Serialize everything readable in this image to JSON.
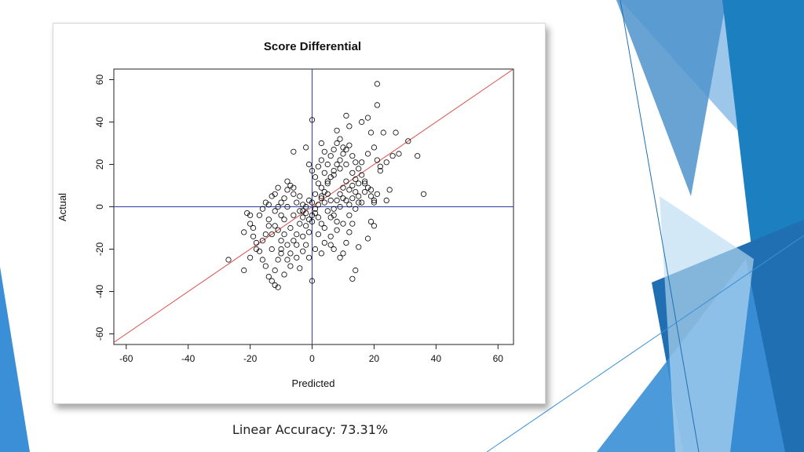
{
  "slide": {
    "caption": "Linear Accuracy: 73.31%",
    "colors": {
      "accent_dark": "#1f6fb2",
      "accent_mid": "#3a8fd6",
      "accent_light": "#9cc6ea",
      "accent_teal": "#1b9ad6"
    }
  },
  "chart_data": {
    "type": "scatter",
    "title": "Score Differential",
    "xlabel": "Predicted",
    "ylabel": "Actual",
    "xlim": [
      -64,
      65
    ],
    "ylim": [
      -65,
      65
    ],
    "xticks": [
      -60,
      -40,
      -20,
      0,
      20,
      40,
      60
    ],
    "yticks": [
      -60,
      -40,
      -20,
      0,
      20,
      40,
      60
    ],
    "grid": false,
    "reference_lines": [
      {
        "kind": "diagonal",
        "slope": 1,
        "intercept": 0,
        "color": "#d9534f"
      },
      {
        "kind": "vertical",
        "x": 0,
        "color": "#2b3ea8"
      },
      {
        "kind": "horizontal",
        "y": 0,
        "color": "#2b3ea8"
      }
    ],
    "marker_color": "#000000",
    "points": [
      [
        21,
        58
      ],
      [
        21,
        48
      ],
      [
        0,
        41
      ],
      [
        11,
        43
      ],
      [
        18,
        42
      ],
      [
        16,
        40
      ],
      [
        12,
        38
      ],
      [
        8,
        36
      ],
      [
        19,
        35
      ],
      [
        23,
        35
      ],
      [
        27,
        35
      ],
      [
        31,
        31
      ],
      [
        34,
        24
      ],
      [
        36,
        6
      ],
      [
        24,
        21
      ],
      [
        26,
        24
      ],
      [
        28,
        25
      ],
      [
        22,
        17
      ],
      [
        17,
        11
      ],
      [
        19,
        8
      ],
      [
        21,
        6
      ],
      [
        25,
        8
      ],
      [
        24,
        3
      ],
      [
        20,
        3
      ],
      [
        15,
        2
      ],
      [
        -27,
        -25
      ],
      [
        -22,
        -30
      ],
      [
        -20,
        -24
      ],
      [
        -17,
        -21
      ],
      [
        -16,
        -25
      ],
      [
        -15,
        -28
      ],
      [
        -14,
        -33
      ],
      [
        -13,
        -35
      ],
      [
        -12,
        -37
      ],
      [
        -11,
        -38
      ],
      [
        -12,
        -30
      ],
      [
        -11,
        -25
      ],
      [
        -10,
        -22
      ],
      [
        -8,
        -18
      ],
      [
        -6,
        -16
      ],
      [
        -3,
        -14
      ],
      [
        -4,
        -29
      ],
      [
        -7,
        -28
      ],
      [
        -9,
        -32
      ],
      [
        -5,
        -24
      ],
      [
        0,
        -35
      ],
      [
        13,
        -34
      ],
      [
        14,
        -30
      ],
      [
        10,
        -22
      ],
      [
        11,
        -17
      ],
      [
        12,
        -12
      ],
      [
        13,
        -8
      ],
      [
        18,
        -15
      ],
      [
        19,
        -7
      ],
      [
        -21,
        -3
      ],
      [
        -20,
        -8
      ],
      [
        -19,
        -14
      ],
      [
        -18,
        -17
      ],
      [
        -14,
        -6
      ],
      [
        -13,
        -13
      ],
      [
        -12,
        -9
      ],
      [
        -10,
        -4
      ],
      [
        -9,
        4
      ],
      [
        -8,
        8
      ],
      [
        -7,
        10
      ],
      [
        -6,
        6
      ],
      [
        -5,
        2
      ],
      [
        -4,
        -2
      ],
      [
        -3,
        -5
      ],
      [
        -2,
        -9
      ],
      [
        -1,
        -12
      ],
      [
        0,
        -7
      ],
      [
        1,
        -3
      ],
      [
        2,
        1
      ],
      [
        3,
        4
      ],
      [
        4,
        7
      ],
      [
        5,
        11
      ],
      [
        6,
        14
      ],
      [
        7,
        17
      ],
      [
        8,
        20
      ],
      [
        9,
        22
      ],
      [
        10,
        25
      ],
      [
        11,
        27
      ],
      [
        12,
        29
      ],
      [
        13,
        24
      ],
      [
        14,
        21
      ],
      [
        15,
        18
      ],
      [
        16,
        15
      ],
      [
        17,
        12
      ],
      [
        18,
        9
      ],
      [
        19,
        5
      ],
      [
        20,
        2
      ],
      [
        -15,
        2
      ],
      [
        -13,
        5
      ],
      [
        -11,
        0
      ],
      [
        -9,
        -6
      ],
      [
        -7,
        -10
      ],
      [
        -5,
        -13
      ],
      [
        -3,
        -2
      ],
      [
        -1,
        3
      ],
      [
        1,
        6
      ],
      [
        3,
        9
      ],
      [
        5,
        12
      ],
      [
        7,
        15
      ],
      [
        9,
        18
      ],
      [
        11,
        20
      ],
      [
        13,
        16
      ],
      [
        15,
        11
      ],
      [
        17,
        7
      ],
      [
        16,
        2
      ],
      [
        14,
        -1
      ],
      [
        12,
        -4
      ],
      [
        10,
        -8
      ],
      [
        8,
        -11
      ],
      [
        6,
        -14
      ],
      [
        4,
        -17
      ],
      [
        2,
        -13
      ],
      [
        0,
        -4
      ],
      [
        -2,
        0
      ],
      [
        -4,
        5
      ],
      [
        -6,
        9
      ],
      [
        -8,
        12
      ],
      [
        -10,
        2
      ],
      [
        -12,
        -2
      ],
      [
        -14,
        -9
      ],
      [
        -16,
        -16
      ],
      [
        -18,
        -20
      ],
      [
        5,
        20
      ],
      [
        6,
        24
      ],
      [
        7,
        27
      ],
      [
        8,
        30
      ],
      [
        9,
        32
      ],
      [
        10,
        28
      ],
      [
        4,
        26
      ],
      [
        3,
        30
      ],
      [
        -2,
        28
      ],
      [
        -6,
        26
      ],
      [
        -1,
        20
      ],
      [
        0,
        17
      ],
      [
        1,
        14
      ],
      [
        2,
        11
      ],
      [
        3,
        5
      ],
      [
        4,
        2
      ],
      [
        5,
        -2
      ],
      [
        6,
        -5
      ],
      [
        7,
        -1
      ],
      [
        8,
        3
      ],
      [
        9,
        6
      ],
      [
        10,
        9
      ],
      [
        11,
        12
      ],
      [
        12,
        8
      ],
      [
        13,
        4
      ],
      [
        14,
        7
      ],
      [
        15,
        5
      ],
      [
        -2,
        -18
      ],
      [
        -3,
        -21
      ],
      [
        -5,
        -18
      ],
      [
        -7,
        -22
      ],
      [
        -8,
        -25
      ],
      [
        -10,
        -20
      ],
      [
        -1,
        -24
      ],
      [
        1,
        -20
      ],
      [
        3,
        -22
      ],
      [
        9,
        -24
      ],
      [
        15,
        -19
      ],
      [
        20,
        -9
      ],
      [
        -19,
        -10
      ],
      [
        -17,
        -4
      ],
      [
        -16,
        -1
      ],
      [
        -14,
        1
      ],
      [
        -12,
        6
      ],
      [
        -11,
        9
      ],
      [
        0,
        2
      ],
      [
        1,
        -1
      ],
      [
        2,
        -5
      ],
      [
        3,
        -8
      ],
      [
        4,
        -10
      ],
      [
        -1,
        -6
      ],
      [
        -2,
        -3
      ],
      [
        -3,
        1
      ],
      [
        2,
        19
      ],
      [
        3,
        22
      ],
      [
        4,
        16
      ],
      [
        5,
        6
      ],
      [
        6,
        3
      ],
      [
        7,
        -4
      ],
      [
        8,
        -7
      ],
      [
        9,
        0
      ],
      [
        10,
        4
      ],
      [
        11,
        3
      ],
      [
        12,
        1
      ],
      [
        13,
        10
      ],
      [
        14,
        13
      ],
      [
        16,
        21
      ],
      [
        18,
        25
      ],
      [
        20,
        28
      ],
      [
        21,
        22
      ],
      [
        22,
        19
      ],
      [
        6,
        -18
      ],
      [
        7,
        -20
      ],
      [
        -4,
        -8
      ],
      [
        -6,
        -4
      ],
      [
        -8,
        0
      ],
      [
        -9,
        -13
      ],
      [
        -10,
        -16
      ],
      [
        -11,
        -11
      ],
      [
        -13,
        -20
      ],
      [
        -15,
        -13
      ],
      [
        -20,
        -4
      ],
      [
        -22,
        -12
      ]
    ]
  }
}
